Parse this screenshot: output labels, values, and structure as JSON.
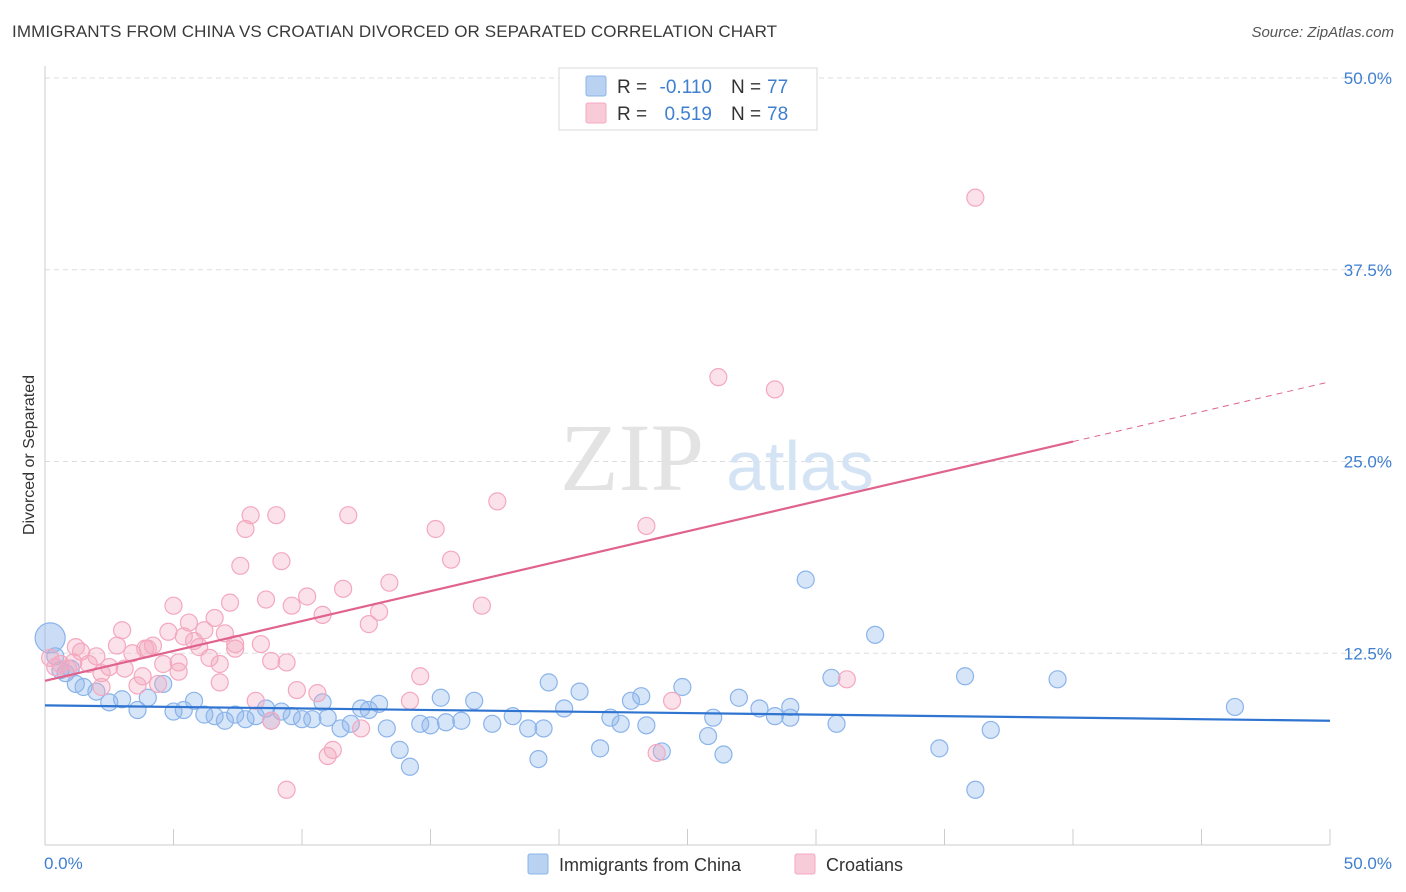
{
  "title": "IMMIGRANTS FROM CHINA VS CROATIAN DIVORCED OR SEPARATED CORRELATION CHART",
  "source": "Source: ZipAtlas.com",
  "watermark": {
    "zip": "ZIP",
    "atlas": "atlas"
  },
  "colors": {
    "blue": "#8bb4ea",
    "blue_line": "#2f74d0",
    "pink": "#f4a8c0",
    "pink_line": "#e0628e",
    "grid": "#dddddd",
    "label": "#3f7fcf"
  },
  "legend": {
    "r_label": "R =",
    "n_label": "N =",
    "rows": [
      {
        "r": "-0.110",
        "n": "77",
        "color": "#8bb4ea"
      },
      {
        "r": "0.519",
        "n": "78",
        "color": "#f4a8c0"
      }
    ]
  },
  "chart_data": {
    "type": "scatter",
    "ylabel": "Divorced or Separated",
    "xlim": [
      0,
      50
    ],
    "ylim": [
      0,
      50
    ],
    "x_tick_labels": [
      "0.0%",
      "50.0%"
    ],
    "y_ticks": [
      12.5,
      25.0,
      37.5,
      50.0
    ],
    "y_tick_labels": [
      "12.5%",
      "25.0%",
      "37.5%",
      "50.0%"
    ],
    "grid": true,
    "legend_position": "top-center",
    "series": [
      {
        "name": "Immigrants from China",
        "color": "#8bb4ea",
        "trend": {
          "x": [
            0,
            50
          ],
          "y": [
            9.1,
            8.1
          ]
        },
        "points": [
          [
            0.2,
            13.5
          ],
          [
            0.4,
            12.3
          ],
          [
            0.6,
            11.4
          ],
          [
            0.8,
            11.2
          ],
          [
            1.0,
            11.5
          ],
          [
            1.2,
            10.5
          ],
          [
            1.5,
            10.3
          ],
          [
            2.0,
            10.0
          ],
          [
            2.5,
            9.3
          ],
          [
            3.0,
            9.5
          ],
          [
            3.6,
            8.8
          ],
          [
            4.0,
            9.6
          ],
          [
            4.6,
            10.5
          ],
          [
            5.0,
            8.7
          ],
          [
            5.4,
            8.8
          ],
          [
            5.8,
            9.4
          ],
          [
            6.2,
            8.5
          ],
          [
            6.6,
            8.4
          ],
          [
            7.0,
            8.1
          ],
          [
            7.4,
            8.5
          ],
          [
            7.8,
            8.2
          ],
          [
            8.2,
            8.4
          ],
          [
            8.6,
            8.9
          ],
          [
            8.8,
            8.1
          ],
          [
            9.2,
            8.7
          ],
          [
            9.6,
            8.4
          ],
          [
            10.0,
            8.2
          ],
          [
            10.4,
            8.2
          ],
          [
            10.8,
            9.3
          ],
          [
            11.0,
            8.3
          ],
          [
            11.5,
            7.6
          ],
          [
            11.9,
            7.9
          ],
          [
            12.3,
            8.9
          ],
          [
            12.6,
            8.8
          ],
          [
            13.0,
            9.2
          ],
          [
            13.3,
            7.6
          ],
          [
            13.8,
            6.2
          ],
          [
            14.2,
            5.1
          ],
          [
            14.6,
            7.9
          ],
          [
            15.0,
            7.8
          ],
          [
            15.4,
            9.6
          ],
          [
            15.6,
            8.0
          ],
          [
            16.2,
            8.1
          ],
          [
            16.7,
            9.4
          ],
          [
            17.4,
            7.9
          ],
          [
            18.2,
            8.4
          ],
          [
            18.8,
            7.6
          ],
          [
            19.2,
            5.6
          ],
          [
            19.4,
            7.6
          ],
          [
            19.6,
            10.6
          ],
          [
            20.2,
            8.9
          ],
          [
            20.8,
            10.0
          ],
          [
            21.6,
            6.3
          ],
          [
            22.0,
            8.3
          ],
          [
            22.4,
            7.9
          ],
          [
            22.8,
            9.4
          ],
          [
            23.2,
            9.7
          ],
          [
            23.4,
            7.8
          ],
          [
            24.0,
            6.1
          ],
          [
            24.8,
            10.3
          ],
          [
            25.8,
            7.1
          ],
          [
            26.0,
            8.3
          ],
          [
            26.4,
            5.9
          ],
          [
            27.0,
            9.6
          ],
          [
            27.8,
            8.9
          ],
          [
            28.4,
            8.4
          ],
          [
            29.0,
            8.3
          ],
          [
            29.0,
            9.0
          ],
          [
            29.6,
            17.3
          ],
          [
            30.6,
            10.9
          ],
          [
            30.8,
            7.9
          ],
          [
            32.3,
            13.7
          ],
          [
            34.8,
            6.3
          ],
          [
            35.8,
            11.0
          ],
          [
            36.2,
            3.6
          ],
          [
            36.8,
            7.5
          ],
          [
            39.4,
            10.8
          ],
          [
            46.3,
            9.0
          ]
        ]
      },
      {
        "name": "Croatians",
        "color": "#f4a8c0",
        "trend": {
          "x": [
            0,
            40
          ],
          "y": [
            10.7,
            26.3
          ]
        },
        "trend_extension": {
          "x": [
            40,
            50
          ],
          "y": [
            26.3,
            30.2
          ]
        },
        "points": [
          [
            0.2,
            12.2
          ],
          [
            0.4,
            11.6
          ],
          [
            0.6,
            11.8
          ],
          [
            0.9,
            11.5
          ],
          [
            1.1,
            11.9
          ],
          [
            1.4,
            12.6
          ],
          [
            1.7,
            11.8
          ],
          [
            2.0,
            12.3
          ],
          [
            2.2,
            10.3
          ],
          [
            2.5,
            11.6
          ],
          [
            2.8,
            13.0
          ],
          [
            3.0,
            14.0
          ],
          [
            3.1,
            11.5
          ],
          [
            3.4,
            12.5
          ],
          [
            3.6,
            10.4
          ],
          [
            3.9,
            12.8
          ],
          [
            4.0,
            12.8
          ],
          [
            4.2,
            13.0
          ],
          [
            4.4,
            10.5
          ],
          [
            4.6,
            11.8
          ],
          [
            4.8,
            13.9
          ],
          [
            5.0,
            15.6
          ],
          [
            5.2,
            11.9
          ],
          [
            5.4,
            13.6
          ],
          [
            5.6,
            14.5
          ],
          [
            5.8,
            13.3
          ],
          [
            6.0,
            12.9
          ],
          [
            6.2,
            14.0
          ],
          [
            6.4,
            12.2
          ],
          [
            6.6,
            14.8
          ],
          [
            6.8,
            11.8
          ],
          [
            7.0,
            13.8
          ],
          [
            7.2,
            15.8
          ],
          [
            7.4,
            13.1
          ],
          [
            7.6,
            18.2
          ],
          [
            7.8,
            20.6
          ],
          [
            8.0,
            21.5
          ],
          [
            8.2,
            9.4
          ],
          [
            8.4,
            13.1
          ],
          [
            8.6,
            16.0
          ],
          [
            8.8,
            8.1
          ],
          [
            9.0,
            21.5
          ],
          [
            9.2,
            18.5
          ],
          [
            9.4,
            11.9
          ],
          [
            9.6,
            15.6
          ],
          [
            9.8,
            10.1
          ],
          [
            10.2,
            16.2
          ],
          [
            10.6,
            9.9
          ],
          [
            10.8,
            15.0
          ],
          [
            11.0,
            5.8
          ],
          [
            11.2,
            6.2
          ],
          [
            11.6,
            16.7
          ],
          [
            11.8,
            21.5
          ],
          [
            12.3,
            7.6
          ],
          [
            12.6,
            14.4
          ],
          [
            13.0,
            15.2
          ],
          [
            13.4,
            17.1
          ],
          [
            14.2,
            9.4
          ],
          [
            14.6,
            11.0
          ],
          [
            15.2,
            20.6
          ],
          [
            15.8,
            18.6
          ],
          [
            17.0,
            15.6
          ],
          [
            17.6,
            22.4
          ],
          [
            23.4,
            20.8
          ],
          [
            23.8,
            6.0
          ],
          [
            24.4,
            9.4
          ],
          [
            26.2,
            30.5
          ],
          [
            28.4,
            29.7
          ],
          [
            31.2,
            10.8
          ],
          [
            36.2,
            42.2
          ],
          [
            9.4,
            3.6
          ],
          [
            6.8,
            10.6
          ],
          [
            5.2,
            11.3
          ],
          [
            2.2,
            11.2
          ],
          [
            1.2,
            12.9
          ],
          [
            3.8,
            11.0
          ],
          [
            7.4,
            12.8
          ],
          [
            8.8,
            12.0
          ]
        ]
      }
    ]
  },
  "bottom_legend": [
    {
      "label": "Immigrants from China",
      "color": "#8bb4ea"
    },
    {
      "label": "Croatians",
      "color": "#f4a8c0"
    }
  ]
}
